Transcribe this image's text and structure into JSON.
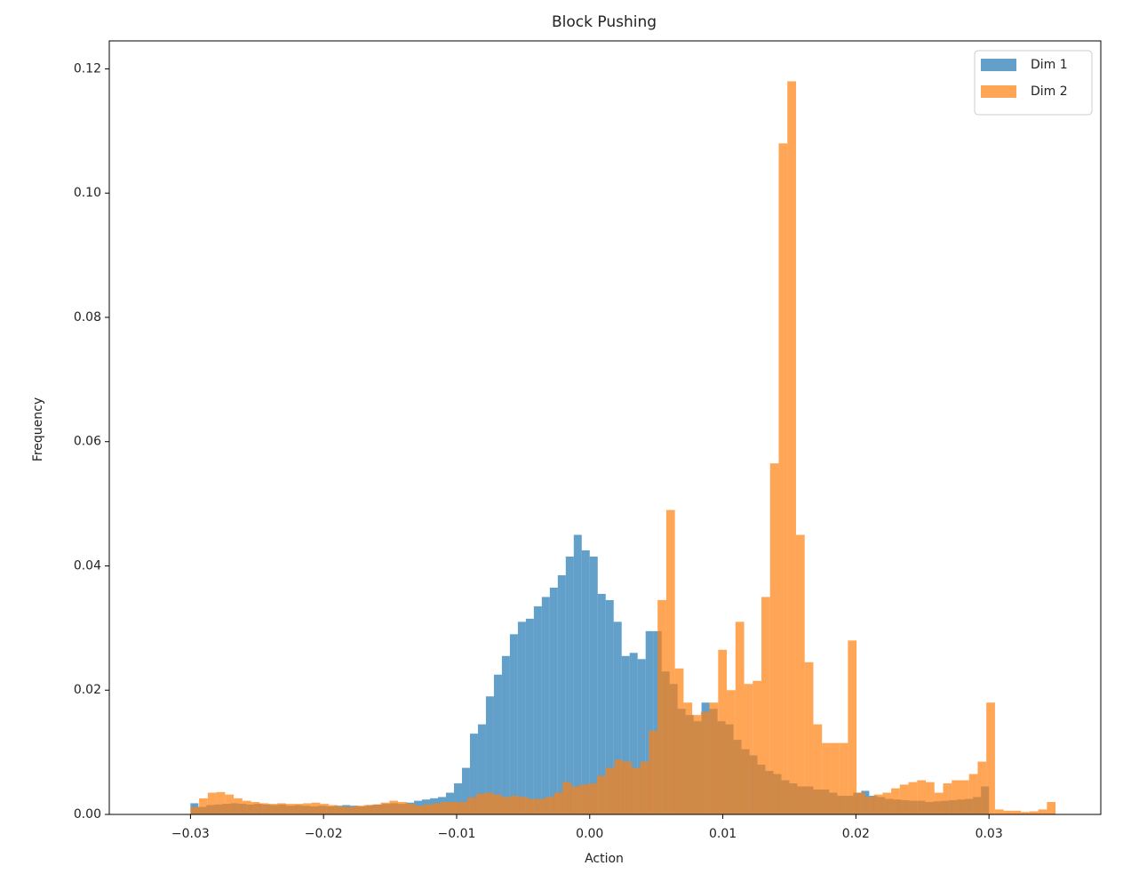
{
  "chart_data": {
    "type": "histogram",
    "title": "Block Pushing",
    "x_label": "Action",
    "y_label": "Frequency",
    "xlim": [
      -0.0361,
      0.0384
    ],
    "ylim": [
      0,
      0.1245
    ],
    "xticks": [
      {
        "value": -0.03,
        "label": "−0.03"
      },
      {
        "value": -0.02,
        "label": "−0.02"
      },
      {
        "value": -0.01,
        "label": "−0.01"
      },
      {
        "value": 0,
        "label": "0.00"
      },
      0.01,
      0.02,
      0.03
    ],
    "yticks": [
      {
        "value": 0,
        "label": "0.00"
      },
      0.02,
      0.04,
      0.06,
      0.08,
      {
        "value": 0.1,
        "label": "0.10"
      },
      0.12
    ],
    "grid": false,
    "legend": "upper right",
    "alpha": 0.7,
    "series": [
      {
        "name": "Dim 1",
        "color": "#1f77b4",
        "bins": [
          -0.03,
          -0.0294,
          -0.0288,
          -0.0282,
          -0.0276,
          -0.027,
          -0.0264,
          -0.0258,
          -0.0252,
          -0.0246,
          -0.024,
          -0.0234,
          -0.0228,
          -0.0222,
          -0.0216,
          -0.021,
          -0.0204,
          -0.0198,
          -0.0192,
          -0.0186,
          -0.018,
          -0.0174,
          -0.0168,
          -0.0162,
          -0.0156,
          -0.015,
          -0.0144,
          -0.0138,
          -0.0132,
          -0.0126,
          -0.012,
          -0.0114,
          -0.0108,
          -0.0102,
          -0.0096,
          -0.009,
          -0.0084,
          -0.0078,
          -0.0072,
          -0.0066,
          -0.006,
          -0.0054,
          -0.0048,
          -0.0042,
          -0.0036,
          -0.003,
          -0.0024,
          -0.0018,
          -0.0012,
          -0.0006,
          0,
          0.0006,
          0.0012,
          0.0018,
          0.0024,
          0.003,
          0.0036,
          0.0042,
          0.0048,
          0.0054,
          0.006,
          0.0066,
          0.0072,
          0.0078,
          0.0084,
          0.009,
          0.0096,
          0.0102,
          0.0108,
          0.0114,
          0.012,
          0.0126,
          0.0132,
          0.0138,
          0.0144,
          0.015,
          0.0156,
          0.0162,
          0.0168,
          0.0174,
          0.018,
          0.0186,
          0.0192,
          0.0198,
          0.0204,
          0.021,
          0.0216,
          0.0222,
          0.0228,
          0.0234,
          0.024,
          0.0246,
          0.0252,
          0.0258,
          0.0264,
          0.027,
          0.0276,
          0.0282,
          0.0288,
          0.0294,
          0.03
        ],
        "values": [
          0.0018,
          0.0012,
          0.0015,
          0.0016,
          0.0017,
          0.0018,
          0.0017,
          0.0016,
          0.0017,
          0.0016,
          0.0015,
          0.0016,
          0.0014,
          0.0015,
          0.0014,
          0.0013,
          0.0014,
          0.0013,
          0.0014,
          0.0015,
          0.0014,
          0.0013,
          0.0015,
          0.0016,
          0.0017,
          0.0018,
          0.0017,
          0.0019,
          0.0022,
          0.0024,
          0.0026,
          0.0028,
          0.0035,
          0.005,
          0.0075,
          0.013,
          0.0145,
          0.019,
          0.0225,
          0.0255,
          0.029,
          0.031,
          0.0315,
          0.0335,
          0.035,
          0.0365,
          0.0385,
          0.0415,
          0.045,
          0.0425,
          0.0415,
          0.0355,
          0.0345,
          0.031,
          0.0255,
          0.026,
          0.025,
          0.0295,
          0.0295,
          0.023,
          0.021,
          0.017,
          0.016,
          0.015,
          0.018,
          0.017,
          0.015,
          0.0145,
          0.012,
          0.0105,
          0.0095,
          0.008,
          0.007,
          0.0065,
          0.0055,
          0.005,
          0.0045,
          0.0045,
          0.004,
          0.004,
          0.0035,
          0.003,
          0.003,
          0.0035,
          0.0038,
          0.003,
          0.0028,
          0.0025,
          0.0024,
          0.0023,
          0.0022,
          0.0022,
          0.002,
          0.0021,
          0.0022,
          0.0023,
          0.0024,
          0.0025,
          0.0028,
          0.0045
        ]
      },
      {
        "name": "Dim 2",
        "color": "#ff7f0e",
        "bins": [
          -0.03,
          -0.02935,
          -0.0287,
          -0.02805,
          -0.0274,
          -0.02675,
          -0.0261,
          -0.02545,
          -0.0248,
          -0.02415,
          -0.0235,
          -0.02285,
          -0.0222,
          -0.02155,
          -0.0209,
          -0.02025,
          -0.0196,
          -0.01895,
          -0.0183,
          -0.01765,
          -0.017,
          -0.01635,
          -0.0157,
          -0.01505,
          -0.0144,
          -0.01375,
          -0.0131,
          -0.01245,
          -0.0118,
          -0.01115,
          -0.0105,
          -0.00985,
          -0.0092,
          -0.00855,
          -0.0079,
          -0.00725,
          -0.0066,
          -0.00595,
          -0.0053,
          -0.00465,
          -0.004,
          -0.00335,
          -0.0027,
          -0.00205,
          -0.0014,
          -0.00075,
          -0.0001,
          0.00055,
          0.0012,
          0.00185,
          0.0025,
          0.00315,
          0.0038,
          0.00445,
          0.0051,
          0.00575,
          0.0064,
          0.00705,
          0.0077,
          0.00835,
          0.009,
          0.00965,
          0.0103,
          0.01095,
          0.0116,
          0.01225,
          0.0129,
          0.01355,
          0.0142,
          0.01485,
          0.0155,
          0.01615,
          0.0168,
          0.01745,
          0.0181,
          0.01875,
          0.0194,
          0.02005,
          0.0207,
          0.02135,
          0.022,
          0.02265,
          0.0233,
          0.02395,
          0.0246,
          0.02525,
          0.0259,
          0.02655,
          0.0272,
          0.02785,
          0.0285,
          0.02915,
          0.0298,
          0.03045,
          0.0311,
          0.03175,
          0.0324,
          0.03305,
          0.0337,
          0.03435,
          0.035
        ],
        "values": [
          0.0012,
          0.0026,
          0.0035,
          0.0036,
          0.0032,
          0.0026,
          0.0022,
          0.002,
          0.0018,
          0.0017,
          0.0018,
          0.0017,
          0.0017,
          0.0018,
          0.0019,
          0.0017,
          0.0015,
          0.0013,
          0.0012,
          0.0014,
          0.0015,
          0.0016,
          0.0019,
          0.0022,
          0.002,
          0.0017,
          0.0014,
          0.0016,
          0.0018,
          0.002,
          0.002,
          0.002,
          0.0027,
          0.0033,
          0.0035,
          0.0032,
          0.0028,
          0.003,
          0.0028,
          0.0025,
          0.0025,
          0.0028,
          0.0035,
          0.0052,
          0.0045,
          0.0048,
          0.005,
          0.0062,
          0.0075,
          0.0088,
          0.0085,
          0.0075,
          0.0085,
          0.0135,
          0.0345,
          0.049,
          0.0235,
          0.018,
          0.016,
          0.0165,
          0.018,
          0.0265,
          0.02,
          0.031,
          0.021,
          0.0215,
          0.035,
          0.0565,
          0.108,
          0.118,
          0.045,
          0.0245,
          0.0145,
          0.0115,
          0.0115,
          0.0115,
          0.028,
          0.0035,
          0.0028,
          0.0032,
          0.0035,
          0.0042,
          0.0048,
          0.0052,
          0.0055,
          0.0052,
          0.0035,
          0.005,
          0.0055,
          0.0055,
          0.0065,
          0.0085,
          0.018,
          0.0008,
          0.0006,
          0.0006,
          0.0004,
          0.0005,
          0.0008,
          0.002
        ]
      }
    ]
  }
}
